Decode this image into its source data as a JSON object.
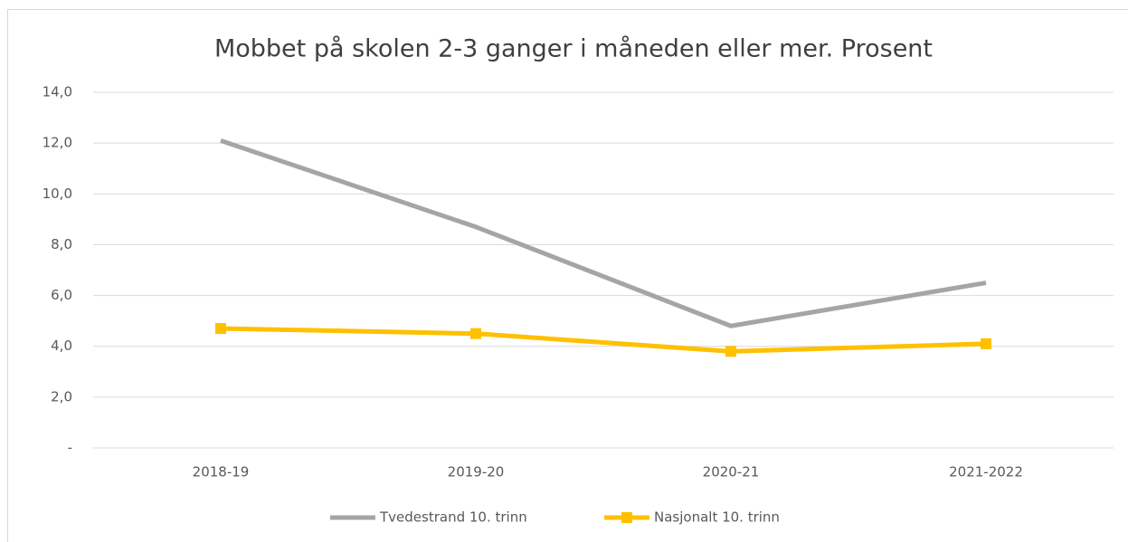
{
  "chart_data": {
    "type": "line",
    "title": "Mobbet på skolen 2-3 ganger i måneden eller mer. Prosent",
    "categories": [
      "2018-19",
      "2019-20",
      "2020-21",
      "2021-2022"
    ],
    "series": [
      {
        "name": "Tvedestrand 10. trinn",
        "color": "#a5a5a5",
        "values": [
          12.1,
          8.7,
          4.8,
          6.5
        ]
      },
      {
        "name": "Nasjonalt 10. trinn",
        "color": "#ffc000",
        "marker": "square",
        "values": [
          4.7,
          4.5,
          3.8,
          4.1
        ]
      }
    ],
    "ylim": [
      0,
      14
    ],
    "yticks": [
      {
        "value": 0,
        "label": "-"
      },
      {
        "value": 2,
        "label": "2,0"
      },
      {
        "value": 4,
        "label": "4,0"
      },
      {
        "value": 6,
        "label": "6,0"
      },
      {
        "value": 8,
        "label": "8,0"
      },
      {
        "value": 10,
        "label": "10,0"
      },
      {
        "value": 12,
        "label": "12,0"
      },
      {
        "value": 14,
        "label": "14,0"
      }
    ],
    "grid": true,
    "legend": "bottom"
  }
}
